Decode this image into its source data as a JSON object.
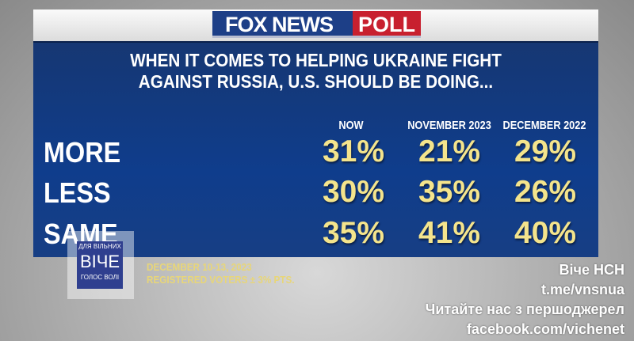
{
  "header": {
    "brand": "FOX NEWS",
    "brand_suffix": "POLL"
  },
  "chart_data": {
    "type": "table",
    "title": "WHEN IT COMES TO HELPING UKRAINE FIGHT AGAINST RUSSIA, U.S. SHOULD BE DOING...",
    "title_lines": [
      "WHEN IT COMES TO HELPING UKRAINE FIGHT",
      "AGAINST RUSSIA, U.S. SHOULD BE DOING..."
    ],
    "columns": [
      "NOW",
      "NOVEMBER 2023",
      "DECEMBER 2022"
    ],
    "rows": [
      {
        "label": "MORE",
        "values": [
          "31%",
          "21%",
          "29%"
        ]
      },
      {
        "label": "LESS",
        "values": [
          "30%",
          "35%",
          "26%"
        ]
      },
      {
        "label": "SAME",
        "values": [
          "35%",
          "41%",
          "40%"
        ]
      }
    ]
  },
  "footer": {
    "dates": "DECEMBER 10-13, 2023",
    "sample": "REGISTERED VOTERS ± 3% PTS."
  },
  "watermark": {
    "logo_top": "ДЛЯ ВІЛЬНИХ",
    "logo_main": "ВІЧЕ",
    "logo_bottom": "ГОЛОС ВОЛІ",
    "lines": [
      "Віче НСН",
      "t.me/vnsnua",
      "Читайте нас з першоджерел",
      "facebook.com/vichenet"
    ]
  },
  "colors": {
    "panel": "#163a80",
    "values": "#f4e48c",
    "fox_blue": "#1d3f87",
    "poll_red": "#c8202f"
  }
}
